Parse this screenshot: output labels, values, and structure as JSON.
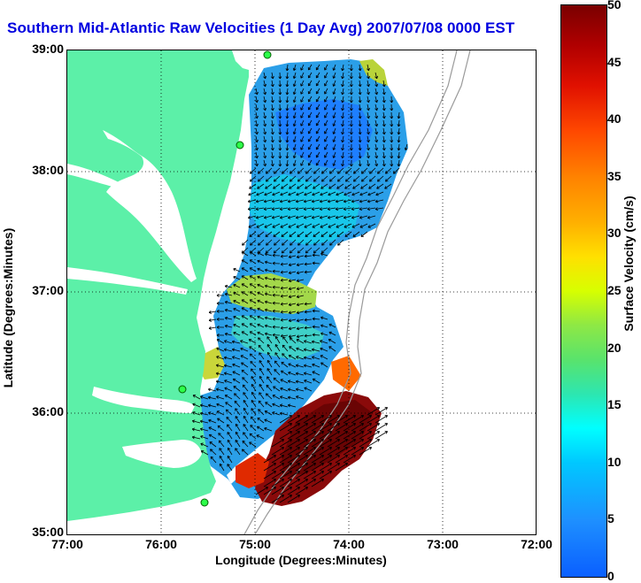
{
  "title": "Southern Mid-Atlantic Raw Velocities (1 Day Avg) 2007/07/08 0000 EST",
  "map": {
    "x_axis": {
      "label": "Longitude (Degrees:Minutes)",
      "range": [
        -77,
        -72
      ],
      "ticks": [
        {
          "value": -77,
          "label": "77:00"
        },
        {
          "value": -76,
          "label": "76:00"
        },
        {
          "value": -75,
          "label": "75:00"
        },
        {
          "value": -74,
          "label": "74:00"
        },
        {
          "value": -73,
          "label": "73:00"
        },
        {
          "value": -72,
          "label": "72:00"
        }
      ]
    },
    "y_axis": {
      "label": "Latitude (Degrees:Minutes)",
      "range": [
        35,
        39
      ],
      "ticks": [
        {
          "value": 39,
          "label": "39:00"
        },
        {
          "value": 38,
          "label": "38:00"
        },
        {
          "value": 37,
          "label": "37:00"
        },
        {
          "value": 36,
          "label": "36:00"
        },
        {
          "value": 35,
          "label": "35:00"
        }
      ]
    },
    "grid": "dotted",
    "land_color": "#5cf0a8",
    "water_color": "#ffffff",
    "radar_sites": [
      {
        "lon": -75.1,
        "lat": 38.97
      },
      {
        "lon": -75.1,
        "lat": 38.2
      },
      {
        "lon": -75.7,
        "lat": 36.2
      },
      {
        "lon": -75.5,
        "lat": 35.26
      }
    ]
  },
  "colorbar": {
    "label": "Surface Velocity (cm/s)",
    "min": 0,
    "max": 50,
    "ticks": [
      "0",
      "5",
      "10",
      "15",
      "20",
      "25",
      "30",
      "35",
      "40",
      "45",
      "50"
    ]
  }
}
